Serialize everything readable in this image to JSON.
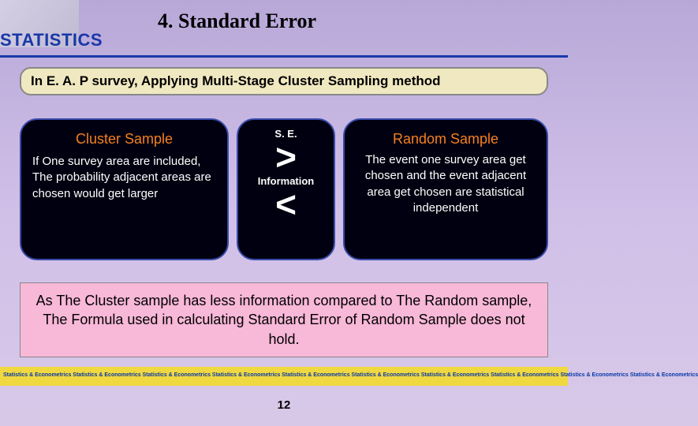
{
  "title": "4. Standard Error",
  "sidebar_label": "STATISTICS",
  "subtitle": "In E. A. P survey, Applying Multi-Stage Cluster Sampling method",
  "left_card": {
    "title": "Cluster Sample",
    "body": "If One survey area are included, The probability adjacent areas are chosen would get larger"
  },
  "mid_card": {
    "top_label": "S. E.",
    "symbol_top": ">",
    "bottom_label": "Information",
    "symbol_bottom": "<"
  },
  "right_card": {
    "title": "Random Sample",
    "body": "The event one survey area get chosen and the event adjacent area get chosen are statistical independent"
  },
  "conclusion": "As The Cluster sample has less information compared to The Random sample, The Formula used in calculating Standard Error of Random Sample does not hold.",
  "footer_repeat": "Statistics & Econometrics Statistics & Econometrics Statistics & Econometrics Statistics & Econometrics Statistics & Econometrics Statistics & Econometrics Statistics & Econometrics Statistics & Econometrics Statistics & Econometrics Statistics & Econometrics",
  "page_number": "12",
  "colors": {
    "bg_top": "#b8a8d8",
    "bg_bottom": "#d8c8e8",
    "accent_blue": "#1838a8",
    "card_bg": "#000010",
    "card_border": "#3a4aaa",
    "orange": "#f58020",
    "subtitle_bg": "#f0e8c0",
    "pink": "#f8b8d8",
    "yellow": "#f0d840"
  }
}
